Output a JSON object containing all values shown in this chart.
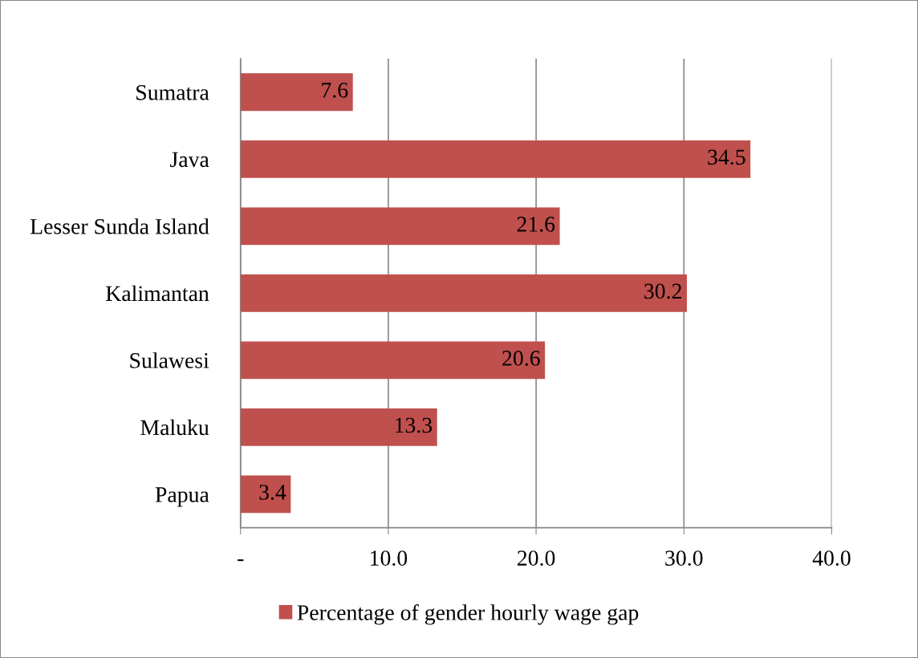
{
  "chart_data": {
    "type": "bar",
    "orientation": "horizontal",
    "categories": [
      "Sumatra",
      "Java",
      "Lesser Sunda Island",
      "Kalimantan",
      "Sulawesi",
      "Maluku",
      "Papua"
    ],
    "series": [
      {
        "name": "Percentage of gender hourly wage gap",
        "color": "#c0504d",
        "values": [
          7.6,
          34.5,
          21.6,
          30.2,
          20.6,
          13.3,
          3.4
        ]
      }
    ],
    "xlim": [
      0,
      40
    ],
    "xticks": [
      {
        "value": 0,
        "label": "-"
      },
      {
        "value": 10,
        "label": "10.0"
      },
      {
        "value": 20,
        "label": "20.0"
      },
      {
        "value": 30,
        "label": "30.0"
      },
      {
        "value": 40,
        "label": "40.0"
      }
    ],
    "grid": "x",
    "legend": "bottom",
    "data_labels": true
  }
}
